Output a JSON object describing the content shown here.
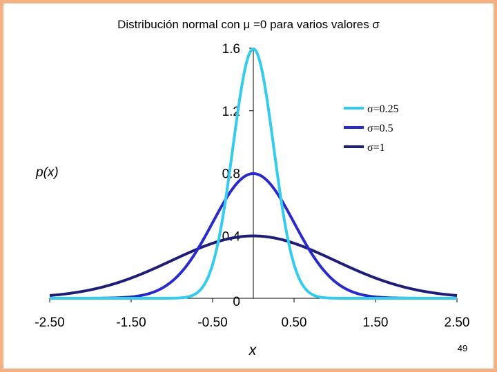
{
  "page": {
    "number": "49"
  },
  "chart_data": {
    "type": "line",
    "title": "Distribución normal con μ =0 para varios valores σ",
    "xlabel": "x",
    "ylabel": "p(x)",
    "xlim": [
      -2.5,
      2.5
    ],
    "ylim": [
      0,
      1.6
    ],
    "x_ticks": [
      -2.5,
      -1.5,
      -0.5,
      0.5,
      1.5,
      2.5
    ],
    "x_tick_labels": [
      "-2.50",
      "-1.50",
      "-0.50",
      "0.50",
      "1.50",
      "2.50"
    ],
    "y_ticks": [
      0,
      0.4,
      0.8,
      1.2,
      1.6
    ],
    "y_tick_labels": [
      "0",
      "0.4",
      "0.8",
      "1.2",
      "1.6"
    ],
    "grid": false,
    "legend": {
      "position": "right",
      "entries": [
        "σ=0.25",
        "σ=0.5",
        "σ=1"
      ]
    },
    "series": [
      {
        "name": "σ=0.25",
        "sigma": 0.25,
        "color": "#33ccee"
      },
      {
        "name": "σ=0.5",
        "sigma": 0.5,
        "color": "#2a2acc"
      },
      {
        "name": "σ=1",
        "sigma": 1,
        "color": "#1e1e78"
      }
    ]
  }
}
